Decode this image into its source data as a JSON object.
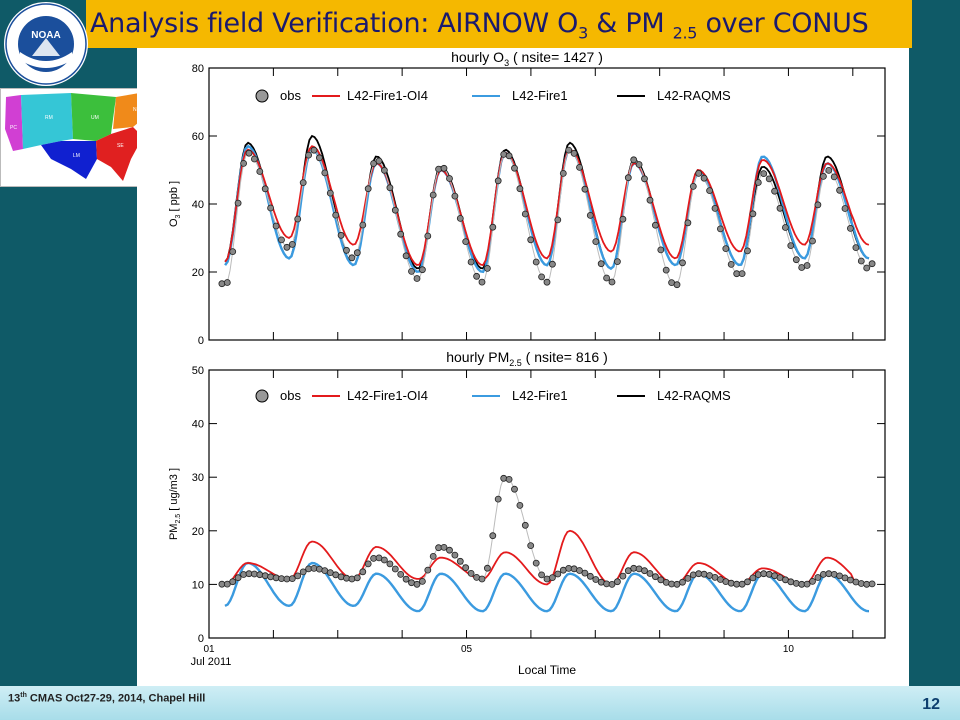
{
  "slide": {
    "title_main": "Analysis field Verification: AIRNOW O",
    "title_sub1": "3",
    "title_mid": " & PM ",
    "title_sub2": "2.5",
    "title_end": " over CONUS",
    "footer_prefix": "13",
    "footer_sup": "th",
    "footer_rest": " CMAS Oct27-29, 2014, Chapel Hill",
    "page_number": "12",
    "logo_text": "NOAA"
  },
  "colors": {
    "obs": "#888888",
    "fire_oi4": "#e31a1c",
    "fire1": "#3b9be0",
    "raqms": "#000000",
    "title_bg": "#f5b800",
    "background": "#0f5a67"
  },
  "chart_data": [
    {
      "type": "line",
      "title": "hourly O3 ( nsite= 1427 )",
      "ylabel": "O3 [ ppb ]",
      "xlabel": "",
      "ylim": [
        0,
        80
      ],
      "yticks": [
        0,
        20,
        40,
        60,
        80
      ],
      "xlim": [
        0,
        10.5
      ],
      "legend": [
        "obs",
        "L42-Fire1-OI4",
        "L42-Fire1",
        "L42-RAQMS"
      ],
      "legend_position": "top",
      "days": [
        1,
        2,
        3,
        4,
        5,
        6,
        7,
        8,
        9,
        10
      ],
      "series": [
        {
          "name": "obs",
          "daily_max": [
            55,
            56,
            53,
            51,
            55,
            56,
            53,
            49,
            49,
            50
          ],
          "daily_min": [
            16,
            27,
            24,
            18,
            17,
            17,
            17,
            16,
            19,
            21
          ]
        },
        {
          "name": "L42-Fire1-OI4",
          "daily_max": [
            56,
            57,
            52,
            50,
            55,
            56,
            52,
            50,
            53,
            52
          ],
          "daily_min": [
            23,
            30,
            28,
            22,
            22,
            24,
            26,
            24,
            26,
            28
          ]
        },
        {
          "name": "L42-Fire1",
          "daily_max": [
            57,
            56,
            52,
            50,
            55,
            56,
            52,
            49,
            54,
            52
          ],
          "daily_min": [
            22,
            24,
            22,
            20,
            20,
            22,
            21,
            22,
            22,
            24
          ]
        },
        {
          "name": "L42-RAQMS",
          "daily_max": [
            58,
            60,
            54,
            51,
            56,
            58,
            53,
            50,
            51,
            54
          ],
          "daily_min": [
            23,
            24,
            22,
            21,
            21,
            22,
            21,
            22,
            22,
            24
          ]
        }
      ]
    },
    {
      "type": "line",
      "title": "hourly PM2.5 ( nsite= 816 )",
      "ylabel": "PM2.5 [ ug/m3 ]",
      "xlabel": "Local Time",
      "ylim": [
        0,
        50
      ],
      "yticks": [
        0,
        10,
        20,
        30,
        40,
        50
      ],
      "xlim": [
        0,
        10.5
      ],
      "xticks": [
        {
          "label": "01",
          "sub": "Jul 2011"
        },
        {
          "label": "05",
          "sub": ""
        },
        {
          "label": "10",
          "sub": ""
        }
      ],
      "legend": [
        "obs",
        "L42-Fire1-OI4",
        "L42-Fire1",
        "L42-RAQMS"
      ],
      "legend_position": "top",
      "days": [
        1,
        2,
        3,
        4,
        5,
        6,
        7,
        8,
        9,
        10
      ],
      "series": [
        {
          "name": "obs",
          "daily_max": [
            12,
            13,
            15,
            17,
            30,
            13,
            13,
            12,
            12,
            12
          ],
          "daily_min": [
            10,
            11,
            11,
            10,
            11,
            11,
            10,
            10,
            10,
            10
          ]
        },
        {
          "name": "L42-Fire1-OI4",
          "daily_max": [
            14,
            18,
            17,
            15,
            16,
            20,
            16,
            14,
            13,
            15
          ],
          "daily_min": [
            10,
            11,
            11,
            11,
            11,
            10,
            10,
            10,
            10,
            10
          ]
        },
        {
          "name": "L42-Fire1",
          "daily_max": [
            14,
            14,
            12,
            12,
            12,
            12,
            12,
            12,
            12,
            12
          ],
          "daily_min": [
            6,
            6,
            6,
            5,
            5,
            5,
            5,
            5,
            5,
            5
          ]
        },
        {
          "name": "L42-RAQMS",
          "daily_max": [
            14,
            14,
            12,
            12,
            12,
            12,
            12,
            12,
            12,
            12
          ],
          "daily_min": [
            6,
            6,
            6,
            5,
            5,
            5,
            5,
            5,
            5,
            5
          ]
        }
      ]
    }
  ],
  "map": {
    "regions": [
      "PC",
      "RM",
      "LM",
      "UM",
      "NE",
      "SE"
    ]
  }
}
